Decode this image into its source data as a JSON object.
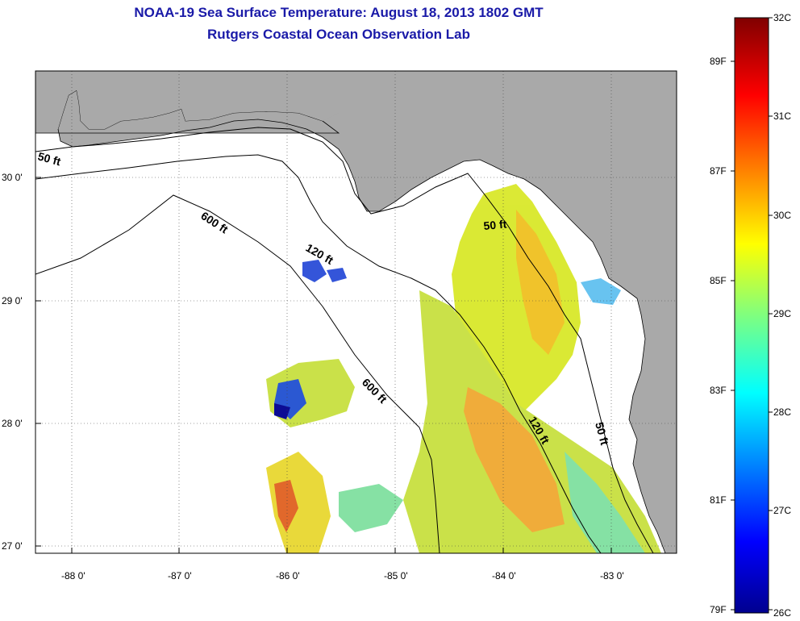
{
  "title": {
    "line1": "NOAA-19 Sea Surface Temperature:  August 18, 2013 1802 GMT",
    "line2": "Rutgers Coastal Ocean Observation Lab"
  },
  "axes": {
    "x_ticks": [
      "-88 0'",
      "-87 0'",
      "-86 0'",
      "-85 0'",
      "-84 0'",
      "-83 0'"
    ],
    "y_ticks": [
      "30 0'",
      "29 0'",
      "28 0'",
      "27 0'"
    ]
  },
  "contours": {
    "labels": [
      "50 ft",
      "600 ft",
      "120 ft",
      "50 ft",
      "600 ft",
      "120 ft",
      "50 ft"
    ]
  },
  "colorbar": {
    "celsius": [
      "32C",
      "31C",
      "30C",
      "29C",
      "28C",
      "27C",
      "26C"
    ],
    "fahrenheit": [
      "89F",
      "87F",
      "85F",
      "83F",
      "81F",
      "79F"
    ]
  },
  "colors": {
    "land": "#a9a9a9",
    "title": "#1a1aa8"
  }
}
